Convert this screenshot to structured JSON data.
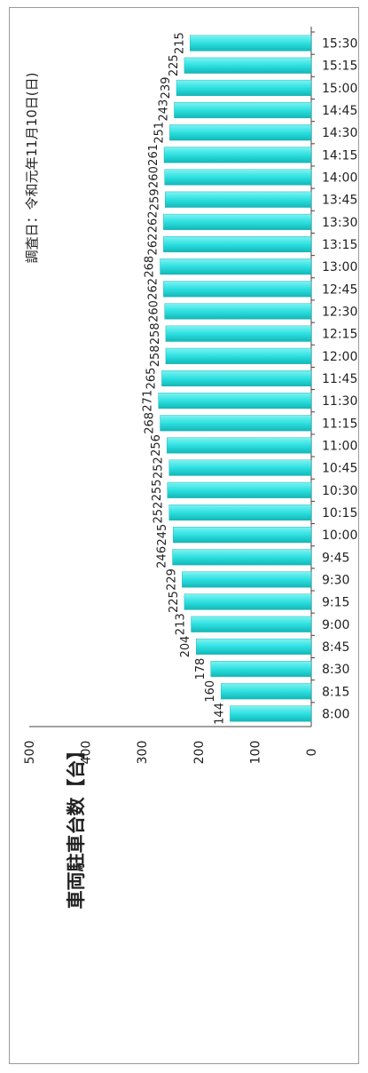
{
  "chart_data": {
    "type": "bar",
    "orientation": "horizontal-rotated",
    "note_text": "調査日：令和元年11月10日(日)",
    "ylabel": "車両駐車台数【台】",
    "xlabel": "",
    "ylim": [
      0,
      500
    ],
    "yticks": [
      0,
      100,
      200,
      300,
      400,
      500
    ],
    "grid": false,
    "bar_color": "#2fd6d6",
    "categories": [
      "8:00",
      "8:15",
      "8:30",
      "8:45",
      "9:00",
      "9:15",
      "9:30",
      "9:45",
      "10:00",
      "10:15",
      "10:30",
      "10:45",
      "11:00",
      "11:15",
      "11:30",
      "11:45",
      "12:00",
      "12:15",
      "12:30",
      "12:45",
      "13:00",
      "13:15",
      "13:30",
      "13:45",
      "14:00",
      "14:15",
      "14:30",
      "14:45",
      "15:00",
      "15:15",
      "15:30"
    ],
    "values": [
      144,
      160,
      178,
      204,
      213,
      225,
      229,
      246,
      245,
      252,
      255,
      252,
      256,
      268,
      271,
      265,
      258,
      258,
      260,
      262,
      268,
      262,
      262,
      259,
      260,
      261,
      251,
      243,
      239,
      225,
      215
    ]
  }
}
